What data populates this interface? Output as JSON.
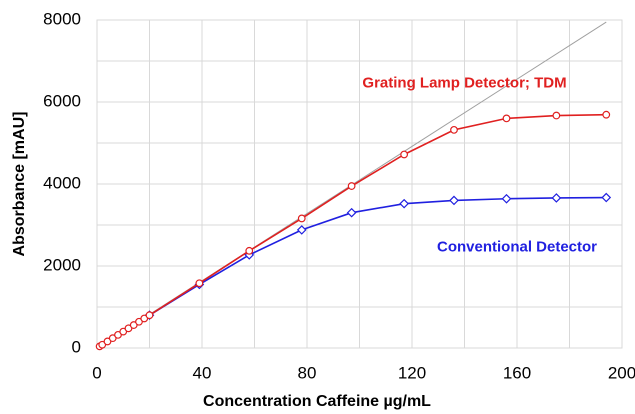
{
  "chart_data": {
    "type": "line",
    "xlabel": "Concentration Caffeine µg/mL",
    "ylabel": "Absorbance [mAU]",
    "xlim": [
      0,
      200
    ],
    "xticks": [
      0,
      40,
      80,
      120,
      160,
      200
    ],
    "ylim": [
      0,
      8000
    ],
    "yticks": [
      0,
      2000,
      4000,
      6000,
      8000
    ],
    "grid": true,
    "x_minor_step": 20,
    "y_minor_step": 1000,
    "series": [
      {
        "color": "#a0a0a0",
        "marker": "none",
        "x": [
          0,
          194
        ],
        "values": [
          0,
          7950
        ]
      },
      {
        "color": "#2020e0",
        "marker": "diamond",
        "x": [
          20,
          39,
          58,
          78,
          97,
          117,
          136,
          156,
          175,
          194
        ],
        "values": [
          800,
          1550,
          2270,
          2880,
          3300,
          3520,
          3600,
          3640,
          3660,
          3670
        ]
      },
      {
        "color": "#e02020",
        "marker": "circle",
        "x": [
          1,
          2,
          4,
          6,
          8,
          10,
          12,
          14,
          16,
          18,
          20,
          39,
          58,
          78,
          97,
          117,
          136,
          156,
          175,
          194
        ],
        "values": [
          40,
          80,
          160,
          240,
          320,
          400,
          480,
          560,
          640,
          720,
          800,
          1580,
          2370,
          3160,
          3950,
          4720,
          5320,
          5600,
          5670,
          5690
        ]
      }
    ],
    "annotations": [
      {
        "text": "Grating Lamp Detector; TDM",
        "x": 140,
        "y": 6450,
        "color": "#e02020"
      },
      {
        "text": "Conventional Detector",
        "x": 160,
        "y": 2450,
        "color": "#2020e0"
      }
    ]
  }
}
